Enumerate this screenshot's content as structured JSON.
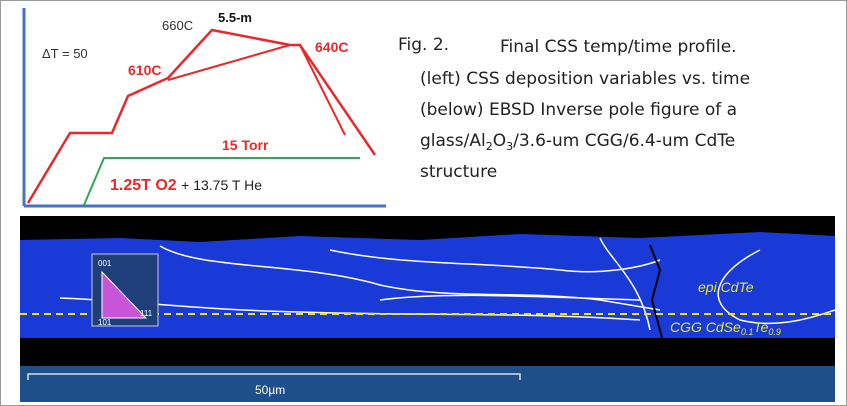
{
  "plot": {
    "delta_t": "ΔT = 50",
    "peak": "660C",
    "dwell": "5.5-m",
    "source": "610C",
    "substrate": "640C",
    "pressure": "15 Torr",
    "gas_o2": "1.25T O2",
    "gas_he": "+ 13.75 T He"
  },
  "caption": {
    "label": "Fig. 2.",
    "title": "Final CSS temp/time profile.",
    "line1": "(left) CSS deposition variables vs. time",
    "line2": "(below) EBSD Inverse pole figure of a",
    "line3": [
      "glass/Al",
      "2",
      "O",
      "3",
      "/3.6-um CGG/6.4-um CdTe"
    ],
    "line4": "structure"
  },
  "image": {
    "legend": [
      "001",
      "101",
      "111"
    ],
    "epi": "epi CdTe",
    "cgg": [
      "CGG CdSe",
      "0.1",
      "Te",
      "0.9"
    ],
    "scale": "50µm"
  }
}
